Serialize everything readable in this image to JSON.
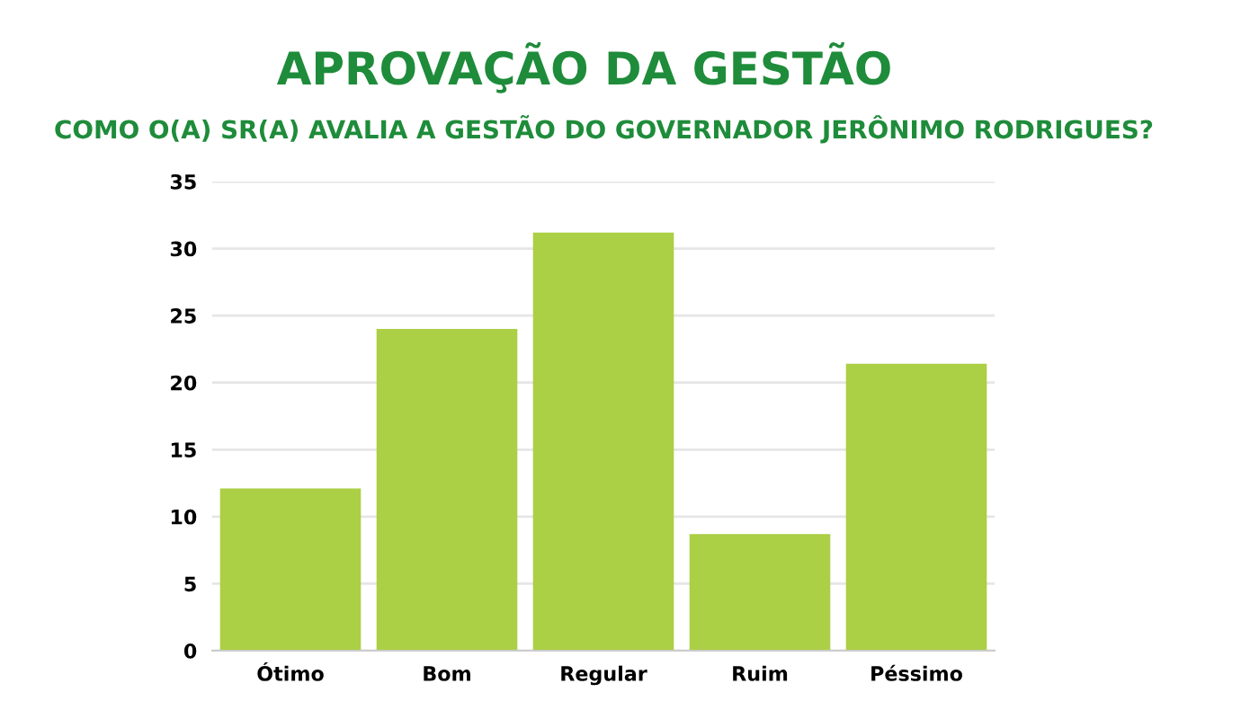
{
  "chart_data": {
    "type": "bar",
    "title": "APROVAÇÃO DA GESTÃO",
    "subtitle": "COMO O(A) SR(A) AVALIA A GESTÃO DO GOVERNADOR JERÔNIMO RODRIGUES?",
    "categories": [
      "Ótimo",
      "Bom",
      "Regular",
      "Ruim",
      "Péssimo"
    ],
    "values": [
      12.1,
      24.0,
      31.2,
      8.7,
      21.4
    ],
    "color": "#abcf45",
    "ylim": [
      0,
      35
    ],
    "yticks": [
      0,
      5,
      10,
      15,
      20,
      25,
      30,
      35
    ],
    "grid": "y"
  }
}
